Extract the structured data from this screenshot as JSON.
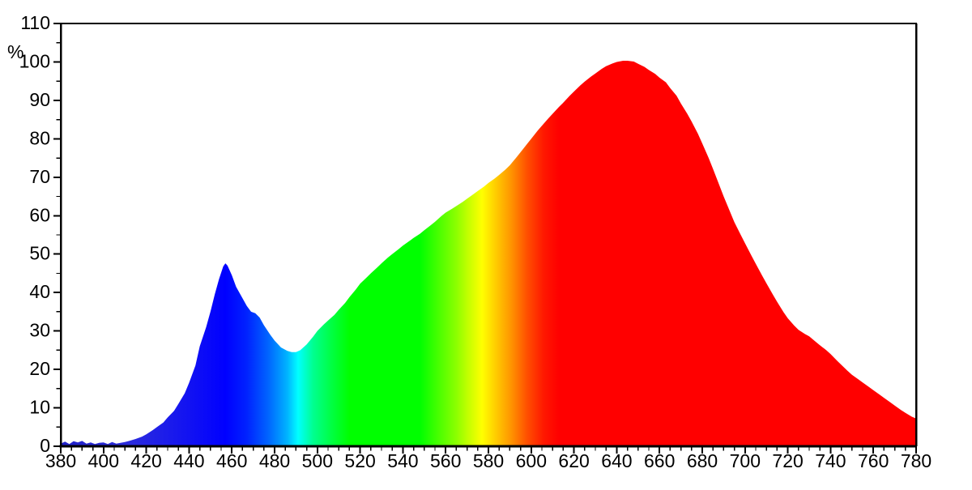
{
  "chart_data": {
    "type": "area",
    "ylabel": "%",
    "xlim": [
      380,
      780
    ],
    "ylim": [
      0,
      110
    ],
    "x_major_tick_step": 20,
    "x_minor_tick_step": 5,
    "y_major_tick_step": 10,
    "y_minor_tick_step": 5,
    "x_tick_labels": [
      "380",
      "400",
      "420",
      "440",
      "460",
      "480",
      "500",
      "520",
      "540",
      "560",
      "580",
      "600",
      "620",
      "640",
      "660",
      "680",
      "700",
      "720",
      "740",
      "760",
      "780"
    ],
    "y_tick_labels": [
      "0",
      "10",
      "20",
      "30",
      "40",
      "50",
      "60",
      "70",
      "80",
      "90",
      "100",
      "110"
    ],
    "grid": false,
    "legend": false,
    "frame": "full-box",
    "background_color": "#ffffff",
    "axis_color": "#000000",
    "label_color": "#000000",
    "fill_style": "visible-spectrum-gradient",
    "spectrum_gradient_stops": [
      {
        "wl": 380,
        "color": "#2121c8"
      },
      {
        "wl": 412,
        "color": "#2c2cdd"
      },
      {
        "wl": 440,
        "color": "#1212f2"
      },
      {
        "wl": 457,
        "color": "#0000ff"
      },
      {
        "wl": 467,
        "color": "#0022ff"
      },
      {
        "wl": 477,
        "color": "#0064ff"
      },
      {
        "wl": 486,
        "color": "#00b4ff"
      },
      {
        "wl": 491,
        "color": "#00ffff"
      },
      {
        "wl": 498,
        "color": "#00ff90"
      },
      {
        "wl": 506,
        "color": "#00ff48"
      },
      {
        "wl": 515,
        "color": "#00ff00"
      },
      {
        "wl": 548,
        "color": "#00ff00"
      },
      {
        "wl": 557,
        "color": "#4bff00"
      },
      {
        "wl": 565,
        "color": "#8cff00"
      },
      {
        "wl": 571,
        "color": "#c8ff00"
      },
      {
        "wl": 577,
        "color": "#ffff00"
      },
      {
        "wl": 584,
        "color": "#ffc800"
      },
      {
        "wl": 591,
        "color": "#ff9100"
      },
      {
        "wl": 598,
        "color": "#ff5000"
      },
      {
        "wl": 606,
        "color": "#ff1700"
      },
      {
        "wl": 613,
        "color": "#ff0000"
      },
      {
        "wl": 780,
        "color": "#ff0000"
      }
    ],
    "points": [
      [
        380,
        0.7
      ],
      [
        382,
        1.2
      ],
      [
        384,
        0.6
      ],
      [
        386,
        1.3
      ],
      [
        388,
        1.0
      ],
      [
        390,
        1.4
      ],
      [
        392,
        0.7
      ],
      [
        394,
        1.0
      ],
      [
        396,
        0.6
      ],
      [
        398,
        0.9
      ],
      [
        400,
        1.0
      ],
      [
        402,
        0.6
      ],
      [
        404,
        1.1
      ],
      [
        406,
        0.7
      ],
      [
        408,
        0.9
      ],
      [
        410,
        1.1
      ],
      [
        412,
        1.4
      ],
      [
        415,
        1.9
      ],
      [
        418,
        2.5
      ],
      [
        420,
        3.1
      ],
      [
        423,
        4.2
      ],
      [
        425,
        5.0
      ],
      [
        428,
        6.2
      ],
      [
        430,
        7.5
      ],
      [
        433,
        9.2
      ],
      [
        435,
        11.0
      ],
      [
        438,
        13.8
      ],
      [
        440,
        16.5
      ],
      [
        443,
        21.0
      ],
      [
        445,
        26.0
      ],
      [
        448,
        31.0
      ],
      [
        450,
        35.0
      ],
      [
        452,
        39.5
      ],
      [
        454,
        43.5
      ],
      [
        456,
        46.8
      ],
      [
        457,
        47.6
      ],
      [
        458,
        47.0
      ],
      [
        460,
        44.5
      ],
      [
        462,
        41.5
      ],
      [
        465,
        38.5
      ],
      [
        467,
        36.5
      ],
      [
        469,
        35.0
      ],
      [
        471,
        34.6
      ],
      [
        473,
        33.5
      ],
      [
        475,
        31.5
      ],
      [
        478,
        29.0
      ],
      [
        480,
        27.5
      ],
      [
        483,
        25.7
      ],
      [
        486,
        24.8
      ],
      [
        488,
        24.5
      ],
      [
        490,
        24.5
      ],
      [
        492,
        25.0
      ],
      [
        495,
        26.5
      ],
      [
        498,
        28.5
      ],
      [
        500,
        30.0
      ],
      [
        503,
        31.7
      ],
      [
        505,
        32.7
      ],
      [
        508,
        34.2
      ],
      [
        510,
        35.5
      ],
      [
        513,
        37.3
      ],
      [
        515,
        38.8
      ],
      [
        518,
        40.8
      ],
      [
        520,
        42.3
      ],
      [
        523,
        43.9
      ],
      [
        525,
        45.0
      ],
      [
        528,
        46.5
      ],
      [
        530,
        47.6
      ],
      [
        533,
        49.1
      ],
      [
        535,
        50.0
      ],
      [
        538,
        51.3
      ],
      [
        540,
        52.2
      ],
      [
        543,
        53.4
      ],
      [
        545,
        54.2
      ],
      [
        548,
        55.3
      ],
      [
        550,
        56.2
      ],
      [
        553,
        57.5
      ],
      [
        555,
        58.4
      ],
      [
        558,
        59.9
      ],
      [
        560,
        60.8
      ],
      [
        563,
        61.8
      ],
      [
        565,
        62.5
      ],
      [
        568,
        63.6
      ],
      [
        570,
        64.4
      ],
      [
        573,
        65.6
      ],
      [
        575,
        66.4
      ],
      [
        578,
        67.6
      ],
      [
        580,
        68.5
      ],
      [
        583,
        69.7
      ],
      [
        585,
        70.6
      ],
      [
        588,
        72.0
      ],
      [
        590,
        73.1
      ],
      [
        593,
        75.1
      ],
      [
        595,
        76.5
      ],
      [
        598,
        78.6
      ],
      [
        600,
        80.0
      ],
      [
        603,
        82.1
      ],
      [
        605,
        83.4
      ],
      [
        608,
        85.3
      ],
      [
        610,
        86.5
      ],
      [
        613,
        88.3
      ],
      [
        615,
        89.4
      ],
      [
        618,
        91.2
      ],
      [
        620,
        92.3
      ],
      [
        623,
        93.9
      ],
      [
        625,
        94.9
      ],
      [
        628,
        96.2
      ],
      [
        630,
        97.0
      ],
      [
        633,
        98.2
      ],
      [
        635,
        98.9
      ],
      [
        638,
        99.6
      ],
      [
        640,
        100.0
      ],
      [
        643,
        100.3
      ],
      [
        645,
        100.3
      ],
      [
        648,
        100.1
      ],
      [
        650,
        99.5
      ],
      [
        653,
        98.7
      ],
      [
        655,
        97.9
      ],
      [
        658,
        96.9
      ],
      [
        660,
        95.9
      ],
      [
        663,
        94.7
      ],
      [
        665,
        93.2
      ],
      [
        668,
        91.2
      ],
      [
        670,
        89.2
      ],
      [
        673,
        86.5
      ],
      [
        675,
        84.5
      ],
      [
        678,
        81.3
      ],
      [
        680,
        78.8
      ],
      [
        683,
        75.0
      ],
      [
        685,
        72.2
      ],
      [
        688,
        67.9
      ],
      [
        690,
        65.0
      ],
      [
        693,
        61.0
      ],
      [
        695,
        58.3
      ],
      [
        698,
        55.0
      ],
      [
        700,
        52.8
      ],
      [
        703,
        49.6
      ],
      [
        705,
        47.5
      ],
      [
        708,
        44.4
      ],
      [
        710,
        42.4
      ],
      [
        713,
        39.5
      ],
      [
        715,
        37.6
      ],
      [
        718,
        34.9
      ],
      [
        720,
        33.3
      ],
      [
        723,
        31.4
      ],
      [
        725,
        30.3
      ],
      [
        728,
        29.2
      ],
      [
        730,
        28.6
      ],
      [
        733,
        27.2
      ],
      [
        735,
        26.3
      ],
      [
        738,
        25.0
      ],
      [
        740,
        24.0
      ],
      [
        743,
        22.3
      ],
      [
        745,
        21.2
      ],
      [
        748,
        19.6
      ],
      [
        750,
        18.6
      ],
      [
        753,
        17.4
      ],
      [
        755,
        16.6
      ],
      [
        758,
        15.4
      ],
      [
        760,
        14.6
      ],
      [
        763,
        13.4
      ],
      [
        765,
        12.6
      ],
      [
        768,
        11.4
      ],
      [
        770,
        10.6
      ],
      [
        773,
        9.4
      ],
      [
        775,
        8.7
      ],
      [
        778,
        7.7
      ],
      [
        780,
        7.2
      ]
    ]
  }
}
